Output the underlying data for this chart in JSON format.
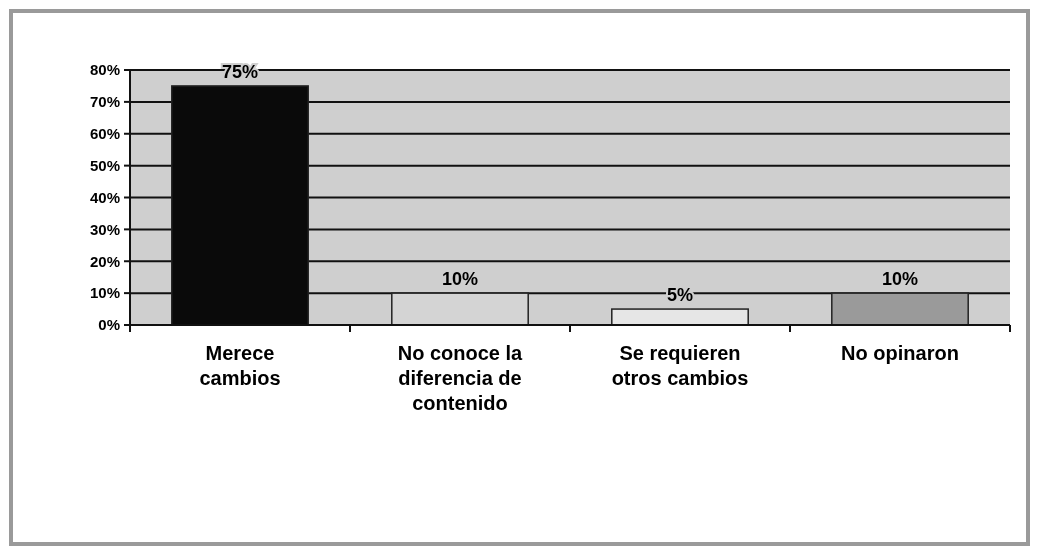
{
  "chart_data": {
    "type": "bar",
    "categories": [
      "Merece cambios",
      "No conoce la diferencia de contenido",
      "Se requieren otros cambios",
      "No opinaron"
    ],
    "values": [
      75,
      10,
      5,
      10
    ],
    "colors": [
      "#0a0a0a",
      "#d4d4d4",
      "#e6e6e6",
      "#9a9a9a"
    ],
    "value_labels": [
      "75%",
      "10%",
      "5%",
      "10%"
    ],
    "ylim": [
      0,
      80
    ],
    "yticks": [
      {
        "value": 0,
        "label": "0%"
      },
      {
        "value": 10,
        "label": "10%"
      },
      {
        "value": 20,
        "label": "20%"
      },
      {
        "value": 30,
        "label": "30%"
      },
      {
        "value": 40,
        "label": "40%"
      },
      {
        "value": 50,
        "label": "50%"
      },
      {
        "value": 60,
        "label": "60%"
      },
      {
        "value": 70,
        "label": "70%"
      },
      {
        "value": 80,
        "label": "80%"
      }
    ],
    "grid": "y"
  }
}
